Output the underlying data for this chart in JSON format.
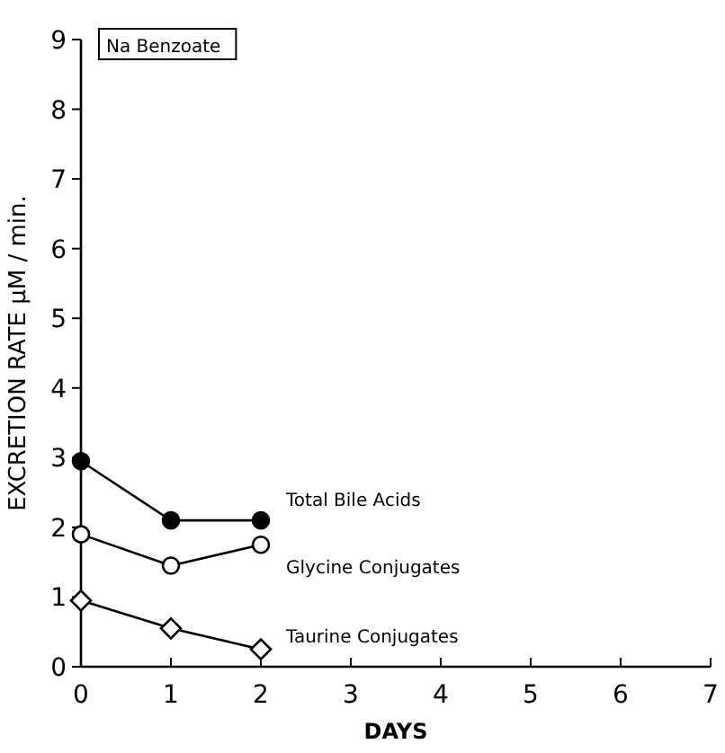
{
  "chart_data": {
    "type": "line",
    "xlabel": "DAYS",
    "ylabel": "EXCRETION RATE μM / min.",
    "x": [
      0,
      1,
      2
    ],
    "xlim": [
      0,
      7
    ],
    "xticks": [
      0,
      1,
      2,
      3,
      4,
      5,
      6,
      7
    ],
    "ylim": [
      0,
      9
    ],
    "yticks": [
      0,
      1,
      2,
      3,
      4,
      5,
      6,
      7,
      8,
      9
    ],
    "grid": false,
    "annotations": [
      "Na Benzoate"
    ],
    "series": [
      {
        "name": "Total Bile Acids",
        "color": "#000000",
        "marker": "circle",
        "values": [
          2.95,
          2.1,
          2.1
        ]
      },
      {
        "name": "Glycine Conjugates",
        "color": "#000000",
        "marker": "circle",
        "values": [
          1.9,
          1.45,
          1.75
        ]
      },
      {
        "name": "Taurine Conjugates",
        "color": "#000000",
        "marker": "diamond",
        "values": [
          0.95,
          0.55,
          0.25
        ]
      }
    ]
  }
}
